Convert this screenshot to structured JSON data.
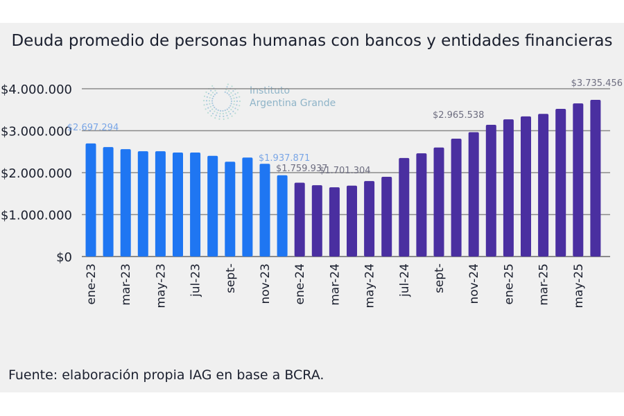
{
  "title": "Deuda promedio de personas humanas con bancos y entidades financieras",
  "footer": "Fuente: elaboración propia IAG en base a BCRA.",
  "watermark": {
    "line1": "Instituto",
    "line2": "Argentina Grande",
    "icon": "dotted-circle-logo-icon"
  },
  "colors": {
    "series_2023": "#1f76f2",
    "series_2024_25": "#4a2fa0",
    "grid": "#8a8a8a",
    "label_2023": "#7aa6e6",
    "label_other": "#6e6e80"
  },
  "chart_data": {
    "type": "bar",
    "title": "Deuda promedio de personas humanas con bancos y entidades financieras",
    "xlabel": "",
    "ylabel": "",
    "ylim": [
      0,
      4000000
    ],
    "yticks": [
      0,
      1000000,
      2000000,
      3000000,
      4000000
    ],
    "ytick_labels": [
      "$0",
      "$1.000.000",
      "$2.000.000",
      "$3.000.000",
      "$4.000.000"
    ],
    "grid": true,
    "categories": [
      "ene-23",
      "feb-23",
      "mar-23",
      "abr-23",
      "may-23",
      "jun-23",
      "jul-23",
      "ago-23",
      "sept-",
      "oct-23",
      "nov-23",
      "dic-23",
      "ene-24",
      "feb-24",
      "mar-24",
      "abr-24",
      "may-24",
      "jun-24",
      "jul-24",
      "ago-24",
      "sept-",
      "oct-24",
      "nov-24",
      "dic-24",
      "ene-25",
      "feb-25",
      "mar-25",
      "abr-25",
      "may-25",
      "jun-25"
    ],
    "xtick_labels": [
      "ene-23",
      "",
      "mar-23",
      "",
      "may-23",
      "",
      "jul-23",
      "",
      "sept-",
      "",
      "nov-23",
      "",
      "ene-24",
      "",
      "mar-24",
      "",
      "may-24",
      "",
      "jul-24",
      "",
      "sept-",
      "",
      "nov-24",
      "",
      "ene-25",
      "",
      "mar-25",
      "",
      "may-25",
      ""
    ],
    "values": [
      2697294,
      2610000,
      2560000,
      2510000,
      2510000,
      2480000,
      2480000,
      2400000,
      2260000,
      2360000,
      2210000,
      1937871,
      1759937,
      1701304,
      1650000,
      1690000,
      1800000,
      1900000,
      2350000,
      2460000,
      2600000,
      2810000,
      2965538,
      3140000,
      3270000,
      3340000,
      3400000,
      3520000,
      3650000,
      3735456
    ],
    "series_groups": [
      {
        "name": "2023",
        "from": 0,
        "to": 11
      },
      {
        "name": "2024-2025",
        "from": 12,
        "to": 29
      }
    ],
    "data_labels": [
      {
        "index": 0,
        "text": "$2.697.294"
      },
      {
        "index": 11,
        "text": "$1.937.871"
      },
      {
        "index": 12,
        "text": "$1.759.937"
      },
      {
        "index": 13,
        "text": "$1.701.304"
      },
      {
        "index": 22,
        "text": "$2.965.538"
      },
      {
        "index": 29,
        "text": "$3.735.456"
      }
    ]
  }
}
